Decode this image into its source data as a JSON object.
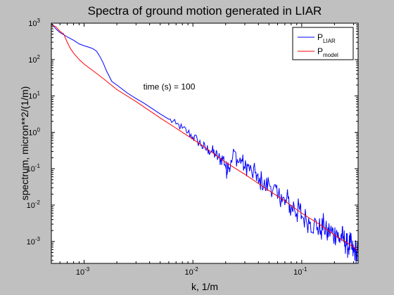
{
  "chart_data": {
    "type": "line",
    "title": "Spectra of ground motion generated in LIAR",
    "xlabel": "k, 1/m",
    "ylabel": "spectrum, micron**2/(1/m)",
    "xscale": "log",
    "yscale": "log",
    "xlim": [
      0.0005,
      0.33
    ],
    "ylim": [
      0.00025,
      1000
    ],
    "xticks": [
      {
        "base": "10",
        "exp": "-3",
        "value": 0.001
      },
      {
        "base": "10",
        "exp": "-2",
        "value": 0.01
      },
      {
        "base": "10",
        "exp": "-1",
        "value": 0.1
      }
    ],
    "yticks": [
      {
        "base": "10",
        "exp": "-3",
        "value": 0.001
      },
      {
        "base": "10",
        "exp": "-2",
        "value": 0.01
      },
      {
        "base": "10",
        "exp": "-1",
        "value": 0.1
      },
      {
        "base": "10",
        "exp": "0",
        "value": 1
      },
      {
        "base": "10",
        "exp": "1",
        "value": 10
      },
      {
        "base": "10",
        "exp": "2",
        "value": 100
      },
      {
        "base": "10",
        "exp": "3",
        "value": 1000
      }
    ],
    "grid": false,
    "legend_position": "top-right",
    "annotation": {
      "text": "time (s) = 100",
      "x": 0.0035,
      "y": 15
    },
    "colors": {
      "figure_background": "#c0c0c0",
      "axes_background": "#ffffff",
      "liar": "#0000ff",
      "model": "#ff0000"
    },
    "series": [
      {
        "label_main": "P",
        "label_sub": "LIAR",
        "color": "#0000ff",
        "noise_from": 0.006,
        "x": [
          0.0005,
          0.00055,
          0.0006,
          0.00065,
          0.0007,
          0.0008,
          0.0009,
          0.001,
          0.0011,
          0.0012,
          0.0013,
          0.0014,
          0.0015,
          0.0016,
          0.0018,
          0.002,
          0.0022,
          0.0025,
          0.003,
          0.0035,
          0.004,
          0.005,
          0.006,
          0.007,
          0.008,
          0.009,
          0.01,
          0.011,
          0.012,
          0.013,
          0.014,
          0.015,
          0.016,
          0.017,
          0.018,
          0.019,
          0.02,
          0.0205,
          0.021,
          0.022,
          0.024,
          0.026,
          0.028,
          0.03,
          0.032,
          0.035,
          0.038,
          0.04,
          0.043,
          0.046,
          0.05,
          0.055,
          0.06,
          0.065,
          0.07,
          0.075,
          0.08,
          0.085,
          0.09,
          0.095,
          0.1,
          0.11,
          0.12,
          0.13,
          0.14,
          0.15,
          0.16,
          0.17,
          0.18,
          0.19,
          0.2,
          0.21,
          0.22,
          0.23,
          0.24,
          0.25,
          0.26,
          0.27,
          0.28,
          0.29,
          0.3,
          0.31,
          0.32,
          0.33
        ],
        "y": [
          1000,
          700,
          550,
          480,
          420,
          340,
          270,
          240,
          220,
          200,
          170,
          120,
          80,
          50,
          25,
          20,
          16,
          12,
          8.5,
          6.5,
          5,
          3.2,
          2.3,
          1.7,
          1.3,
          1,
          0.75,
          0.6,
          0.45,
          0.35,
          0.33,
          0.3,
          0.25,
          0.2,
          0.18,
          0.2,
          0.12,
          0.08,
          0.15,
          0.1,
          0.3,
          0.15,
          0.18,
          0.1,
          0.12,
          0.07,
          0.08,
          0.04,
          0.05,
          0.03,
          0.04,
          0.03,
          0.015,
          0.02,
          0.01,
          0.015,
          0.007,
          0.01,
          0.006,
          0.008,
          0.005,
          0.004,
          0.0035,
          0.003,
          0.0025,
          0.002,
          0.003,
          0.0015,
          0.002,
          0.0018,
          0.0015,
          0.002,
          0.001,
          0.0015,
          0.0012,
          0.001,
          0.0008,
          0.0007,
          0.0009,
          0.0006,
          0.0005,
          0.0006,
          0.0004,
          0.0005
        ]
      },
      {
        "label_main": "P",
        "label_sub": "model",
        "color": "#ff0000",
        "noise_from": 0,
        "x": [
          0.0005,
          0.00055,
          0.0006,
          0.00065,
          0.0007,
          0.00075,
          0.0008,
          0.0009,
          0.001,
          0.0012,
          0.0015,
          0.002,
          0.003,
          0.005,
          0.007,
          0.01,
          0.015,
          0.02,
          0.03,
          0.05,
          0.07,
          0.1,
          0.15,
          0.2,
          0.25,
          0.3,
          0.33
        ],
        "y": [
          900,
          800,
          600,
          500,
          300,
          200,
          150,
          100,
          75,
          50,
          30,
          15,
          7,
          2.5,
          1.3,
          0.65,
          0.28,
          0.15,
          0.07,
          0.025,
          0.013,
          0.006,
          0.0028,
          0.0015,
          0.001,
          0.0007,
          0.00055
        ]
      }
    ]
  }
}
